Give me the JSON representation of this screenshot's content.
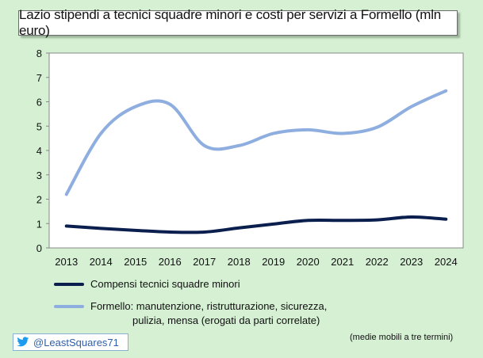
{
  "chart_data": {
    "type": "line",
    "title": "Lazio stipendi a tecnici squadre minori e costi per servizi a Formello (mln euro)",
    "categories": [
      "2013",
      "2014",
      "2015",
      "2016",
      "2017",
      "2018",
      "2019",
      "2020",
      "2021",
      "2022",
      "2023",
      "2024"
    ],
    "ylim": [
      0,
      8
    ],
    "yticks": [
      "0",
      "1",
      "2",
      "3",
      "4",
      "5",
      "6",
      "7",
      "8"
    ],
    "grid": false,
    "legend_position": "bottom",
    "series": [
      {
        "name": "Compensi tecnici squadre minori",
        "color": "#0b1f4e",
        "values": [
          0.9,
          0.8,
          0.72,
          0.65,
          0.65,
          0.82,
          0.98,
          1.13,
          1.13,
          1.15,
          1.27,
          1.18
        ]
      },
      {
        "name": "Formello: manutenzione, ristrutturazione, sicurezza, pulizia, mensa (erogati da parti correlate)",
        "name_line1": "Formello: manutenzione, ristrutturazione, sicurezza,",
        "name_line2": "pulizia, mensa (erogati da parti correlate)",
        "color": "#8faee0",
        "values": [
          2.2,
          4.7,
          5.8,
          5.9,
          4.2,
          4.2,
          4.7,
          4.85,
          4.7,
          4.95,
          5.8,
          6.45
        ]
      }
    ],
    "note": "(medie mobili  a tre termini)"
  },
  "footer": {
    "twitter_handle": "@LeastSquares71",
    "twitter_icon": "twitter-bird-icon"
  }
}
